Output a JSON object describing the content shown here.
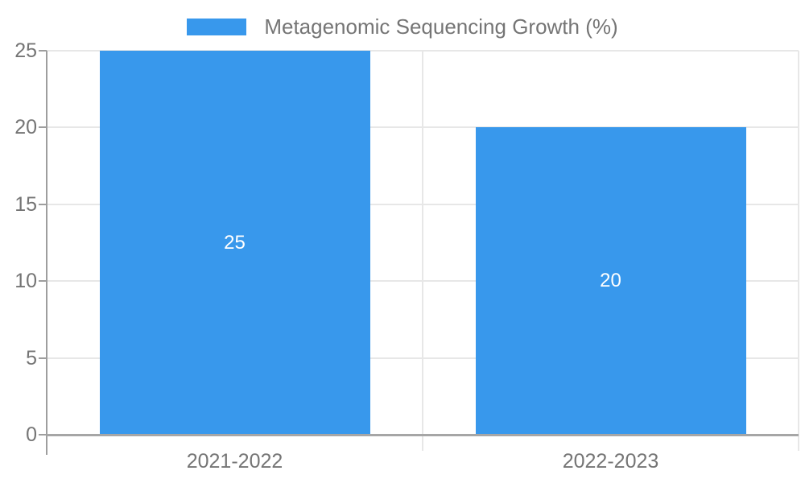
{
  "chart_data": {
    "type": "bar",
    "title": "",
    "legend_label": "Metagenomic Sequencing Growth (%)",
    "legend_position": "top-center",
    "categories": [
      "2021-2022",
      "2022-2023"
    ],
    "values": [
      25,
      20
    ],
    "bar_value_labels": [
      "25",
      "20"
    ],
    "yticks": [
      0,
      5,
      10,
      15,
      20,
      25
    ],
    "ylim": [
      0,
      25
    ],
    "grid": true,
    "bar_color": "#3898ec",
    "grid_color": "#e7e7e7",
    "axis_color": "#9e9e9e",
    "baseline_color": "#a6a6a6",
    "text_color": "#757575",
    "bar_label_color": "#ffffff",
    "background_color": "#ffffff"
  }
}
